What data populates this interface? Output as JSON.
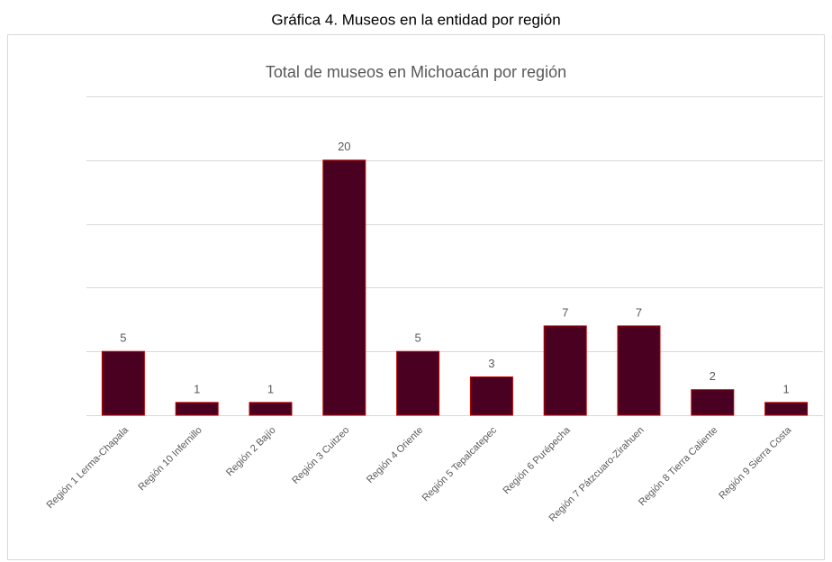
{
  "caption": "Gráfica 4. Museos en la entidad por región",
  "chart_data": {
    "type": "bar",
    "title": "Total de museos en Michoacán por región",
    "categories": [
      "Región 1 Lerma-Chapala",
      "Región 10 Infernillo",
      "Región 2 Bajío",
      "Región 3 Cuitzeo",
      "Región 4 Oriente",
      "Región 5 Tepalcatepec",
      "Región 6 Purépecha",
      "Región 7 Pátzcuaro-Zirahuen",
      "Región 8 Tierra Caliente",
      "Región 9 Sierra Costa"
    ],
    "values": [
      5,
      1,
      1,
      20,
      5,
      3,
      7,
      7,
      2,
      1
    ],
    "color": "#4a0020",
    "edge_color": "#c00000",
    "ylim": [
      0,
      25
    ],
    "yticks": [
      0,
      5,
      10,
      15,
      20,
      25
    ],
    "grid": true
  }
}
